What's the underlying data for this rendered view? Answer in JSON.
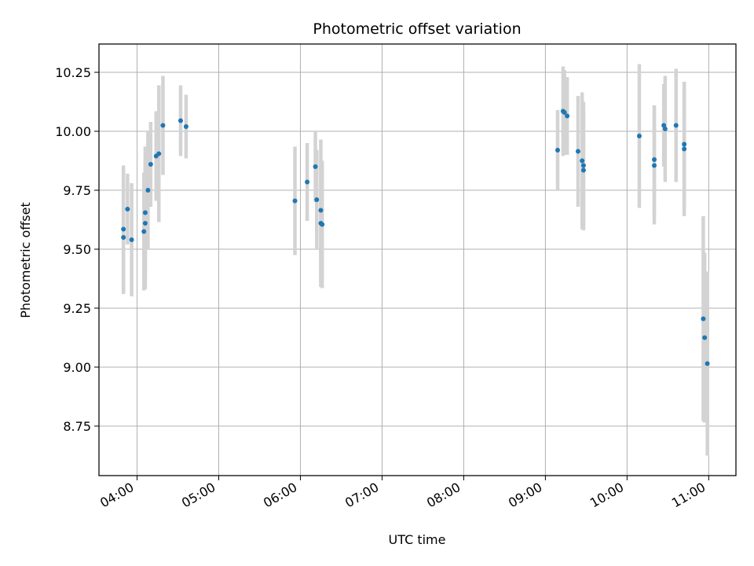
{
  "chart_data": {
    "type": "scatter",
    "title": "Photometric offset variation",
    "xlabel": "UTC time",
    "ylabel": "Photometric offset",
    "xlim": [
      "03:32",
      "11:20"
    ],
    "ylim": [
      8.54,
      10.37
    ],
    "grid": true,
    "xticks": [
      "04:00",
      "05:00",
      "06:00",
      "07:00",
      "08:00",
      "09:00",
      "10:00",
      "11:00"
    ],
    "yticks": [
      "8.75",
      "9.00",
      "9.25",
      "9.50",
      "9.75",
      "10.00",
      "10.25"
    ],
    "colors": {
      "point": "#1f77b4",
      "errorbar": "#d3d3d3",
      "grid": "#b0b0b0"
    },
    "series": [
      {
        "points": [
          {
            "t": "03:50",
            "y": 9.585,
            "err": 0.27
          },
          {
            "t": "03:50",
            "y": 9.55,
            "err": 0.24
          },
          {
            "t": "03:53",
            "y": 9.67,
            "err": 0.15
          },
          {
            "t": "03:56",
            "y": 9.54,
            "err": 0.24
          },
          {
            "t": "04:05",
            "y": 9.575,
            "err": 0.25
          },
          {
            "t": "04:06",
            "y": 9.61,
            "err": 0.28
          },
          {
            "t": "04:06",
            "y": 9.655,
            "err": 0.28
          },
          {
            "t": "04:08",
            "y": 9.75,
            "err": 0.25
          },
          {
            "t": "04:10",
            "y": 9.86,
            "err": 0.18
          },
          {
            "t": "04:14",
            "y": 9.895,
            "err": 0.19
          },
          {
            "t": "04:16",
            "y": 9.905,
            "err": 0.29
          },
          {
            "t": "04:19",
            "y": 10.025,
            "err": 0.21
          },
          {
            "t": "04:32",
            "y": 10.045,
            "err": 0.15
          },
          {
            "t": "04:36",
            "y": 10.02,
            "err": 0.135
          },
          {
            "t": "05:56",
            "y": 9.705,
            "err": 0.23
          },
          {
            "t": "06:05",
            "y": 9.785,
            "err": 0.165
          },
          {
            "t": "06:11",
            "y": 9.85,
            "err": 0.15
          },
          {
            "t": "06:12",
            "y": 9.71,
            "err": 0.21
          },
          {
            "t": "06:15",
            "y": 9.665,
            "err": 0.3
          },
          {
            "t": "06:15",
            "y": 9.61,
            "err": 0.27
          },
          {
            "t": "06:16",
            "y": 9.605,
            "err": 0.27
          },
          {
            "t": "09:09",
            "y": 9.92,
            "err": 0.17
          },
          {
            "t": "09:13",
            "y": 10.085,
            "err": 0.19
          },
          {
            "t": "09:14",
            "y": 10.08,
            "err": 0.18
          },
          {
            "t": "09:16",
            "y": 10.065,
            "err": 0.165
          },
          {
            "t": "09:24",
            "y": 9.915,
            "err": 0.235
          },
          {
            "t": "09:27",
            "y": 9.875,
            "err": 0.29
          },
          {
            "t": "09:28",
            "y": 9.855,
            "err": 0.27
          },
          {
            "t": "09:28",
            "y": 9.835,
            "err": 0.255
          },
          {
            "t": "10:09",
            "y": 9.98,
            "err": 0.305
          },
          {
            "t": "10:20",
            "y": 9.88,
            "err": 0.23
          },
          {
            "t": "10:20",
            "y": 9.855,
            "err": 0.25
          },
          {
            "t": "10:27",
            "y": 10.025,
            "err": 0.175
          },
          {
            "t": "10:28",
            "y": 10.01,
            "err": 0.225
          },
          {
            "t": "10:36",
            "y": 10.025,
            "err": 0.24
          },
          {
            "t": "10:42",
            "y": 9.945,
            "err": 0.265
          },
          {
            "t": "10:42",
            "y": 9.925,
            "err": 0.285
          },
          {
            "t": "10:56",
            "y": 9.205,
            "err": 0.435
          },
          {
            "t": "10:57",
            "y": 9.125,
            "err": 0.36
          },
          {
            "t": "10:59",
            "y": 9.015,
            "err": 0.39
          }
        ]
      }
    ]
  }
}
